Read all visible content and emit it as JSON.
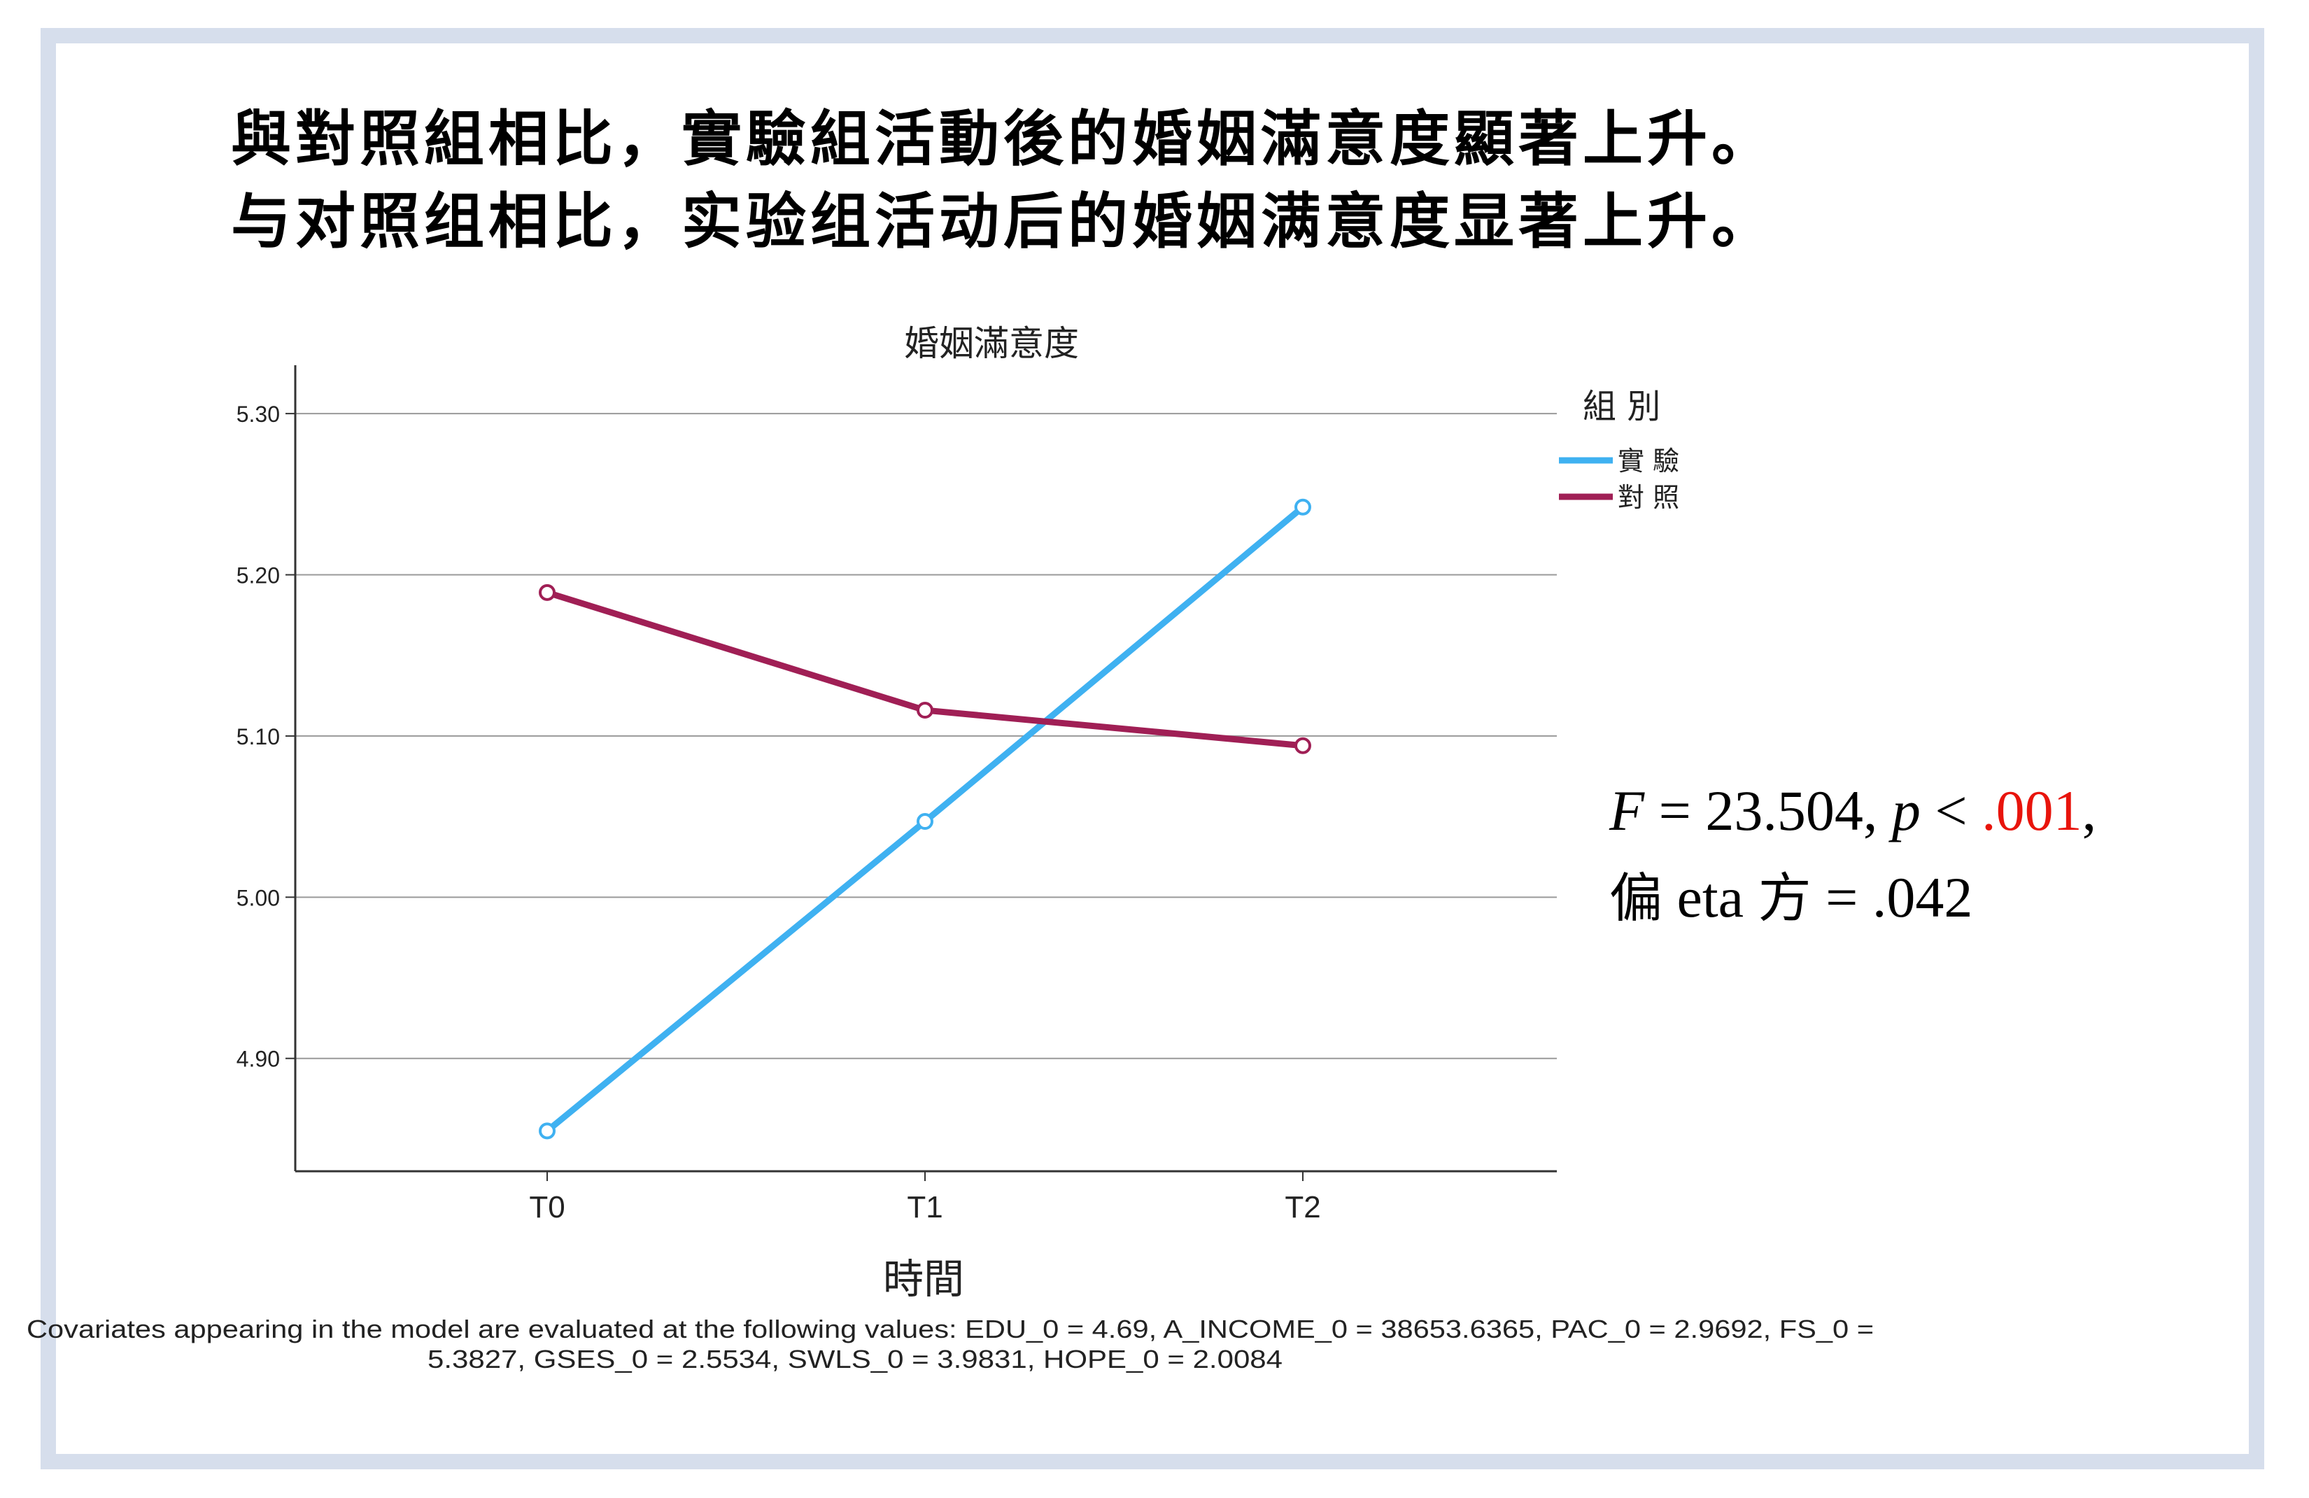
{
  "slide": {
    "headline_traditional": "與對照組相比，實驗組活動後的婚姻滿意度顯著上升。",
    "headline_simplified": "与对照组相比，实验组活动后的婚姻满意度显著上升。"
  },
  "stats": {
    "f_symbol": "F",
    "f_text": " = 23.504, ",
    "p_symbol": "p",
    "p_lt": " < ",
    "p_value": ".001",
    "trailing_comma": ",",
    "eta_cjk_1": "偏",
    "eta_word": " eta ",
    "eta_cjk_2": "方",
    "eta_value": " = .042",
    "highlight_color": "#e8140c"
  },
  "chart_data": {
    "type": "line",
    "title": "婚姻滿意度",
    "xlabel": "時間",
    "ylabel": "",
    "categories": [
      "T0",
      "T1",
      "T2"
    ],
    "ylim": [
      4.83,
      5.33
    ],
    "yticks": [
      4.9,
      5.0,
      5.1,
      5.2,
      5.3
    ],
    "ytick_labels": [
      "4.90",
      "5.00",
      "5.10",
      "5.20",
      "5.30"
    ],
    "grid": true,
    "legend_title": "組 別",
    "legend_position": "right-top",
    "series": [
      {
        "name": "實 驗",
        "values": [
          4.855,
          5.047,
          5.242
        ],
        "color": "#3fb1f1"
      },
      {
        "name": "對 照",
        "values": [
          5.189,
          5.116,
          5.094
        ],
        "color": "#a01f55"
      }
    ],
    "note_line1": "Covariates appearing in the model are evaluated at the following values: EDU_0 = 4.69, A_INCOME_0 = 38653.6365, PAC_0 = 2.9692, FS_0 =",
    "note_line2": "5.3827, GSES_0 = 2.5534, SWLS_0 = 3.9831, HOPE_0 = 2.0084"
  }
}
